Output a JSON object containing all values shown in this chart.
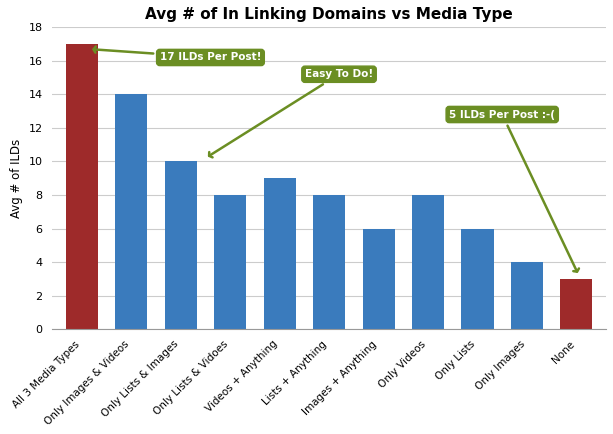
{
  "title": "Avg # of In Linking Domains vs Media Type",
  "ylabel": "Avg # of ILDs",
  "categories": [
    "All 3 Media Types",
    "Only Images & Videos",
    "Only Lists & Images",
    "Only Lists & Vidoes",
    "Videos + Anything",
    "Lists + Anything",
    "Images + Anything",
    "Only Videos",
    "Only Lists",
    "Only Images",
    "None"
  ],
  "values": [
    17,
    14,
    10,
    8,
    9,
    8,
    6,
    8,
    6,
    4,
    3
  ],
  "bar_colors": [
    "#9E2A2A",
    "#3A7BBD",
    "#3A7BBD",
    "#3A7BBD",
    "#3A7BBD",
    "#3A7BBD",
    "#3A7BBD",
    "#3A7BBD",
    "#3A7BBD",
    "#3A7BBD",
    "#9E2A2A"
  ],
  "ylim": [
    0,
    18
  ],
  "yticks": [
    0,
    2,
    4,
    6,
    8,
    10,
    12,
    14,
    16,
    18
  ],
  "annotation_box_color": "#6B8E23",
  "annotation_text_color": "white",
  "arrow_color": "#6B8E23",
  "background_color": "#FFFFFF",
  "grid_color": "#CCCCCC"
}
